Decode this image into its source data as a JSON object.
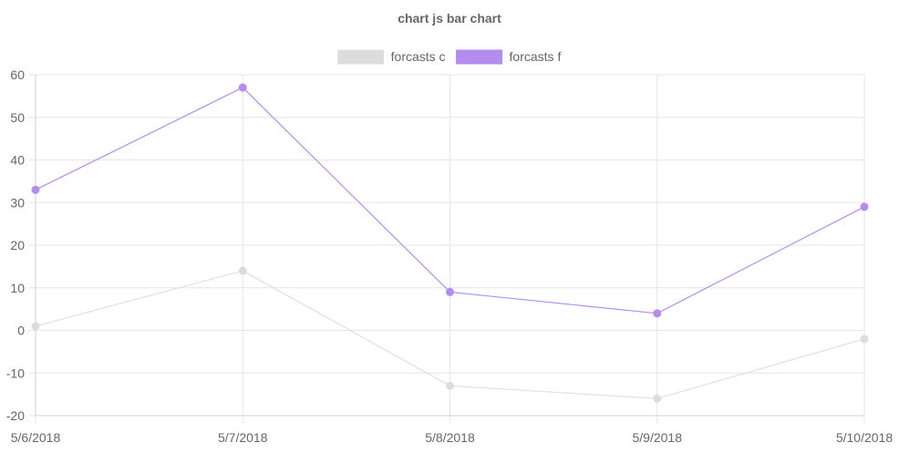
{
  "chart_data": {
    "type": "line",
    "title": "chart js bar chart",
    "xlabel": "",
    "ylabel": "",
    "categories": [
      "5/6/2018",
      "5/7/2018",
      "5/8/2018",
      "5/9/2018",
      "5/10/2018"
    ],
    "ylim": [
      -20,
      60
    ],
    "yticks": [
      "60",
      "50",
      "40",
      "30",
      "20",
      "10",
      "0",
      "-10",
      "-20"
    ],
    "grid": true,
    "legend_position": "top",
    "series": [
      {
        "name": "forcasts c",
        "values": [
          1,
          14,
          -13,
          -16,
          -2
        ],
        "color": "#dcdcdc",
        "line_color": "#e0e0e0"
      },
      {
        "name": "forcasts f",
        "values": [
          33,
          57,
          9,
          4,
          29
        ],
        "color": "#b48cf0",
        "line_color": "#b58cf2"
      }
    ]
  }
}
